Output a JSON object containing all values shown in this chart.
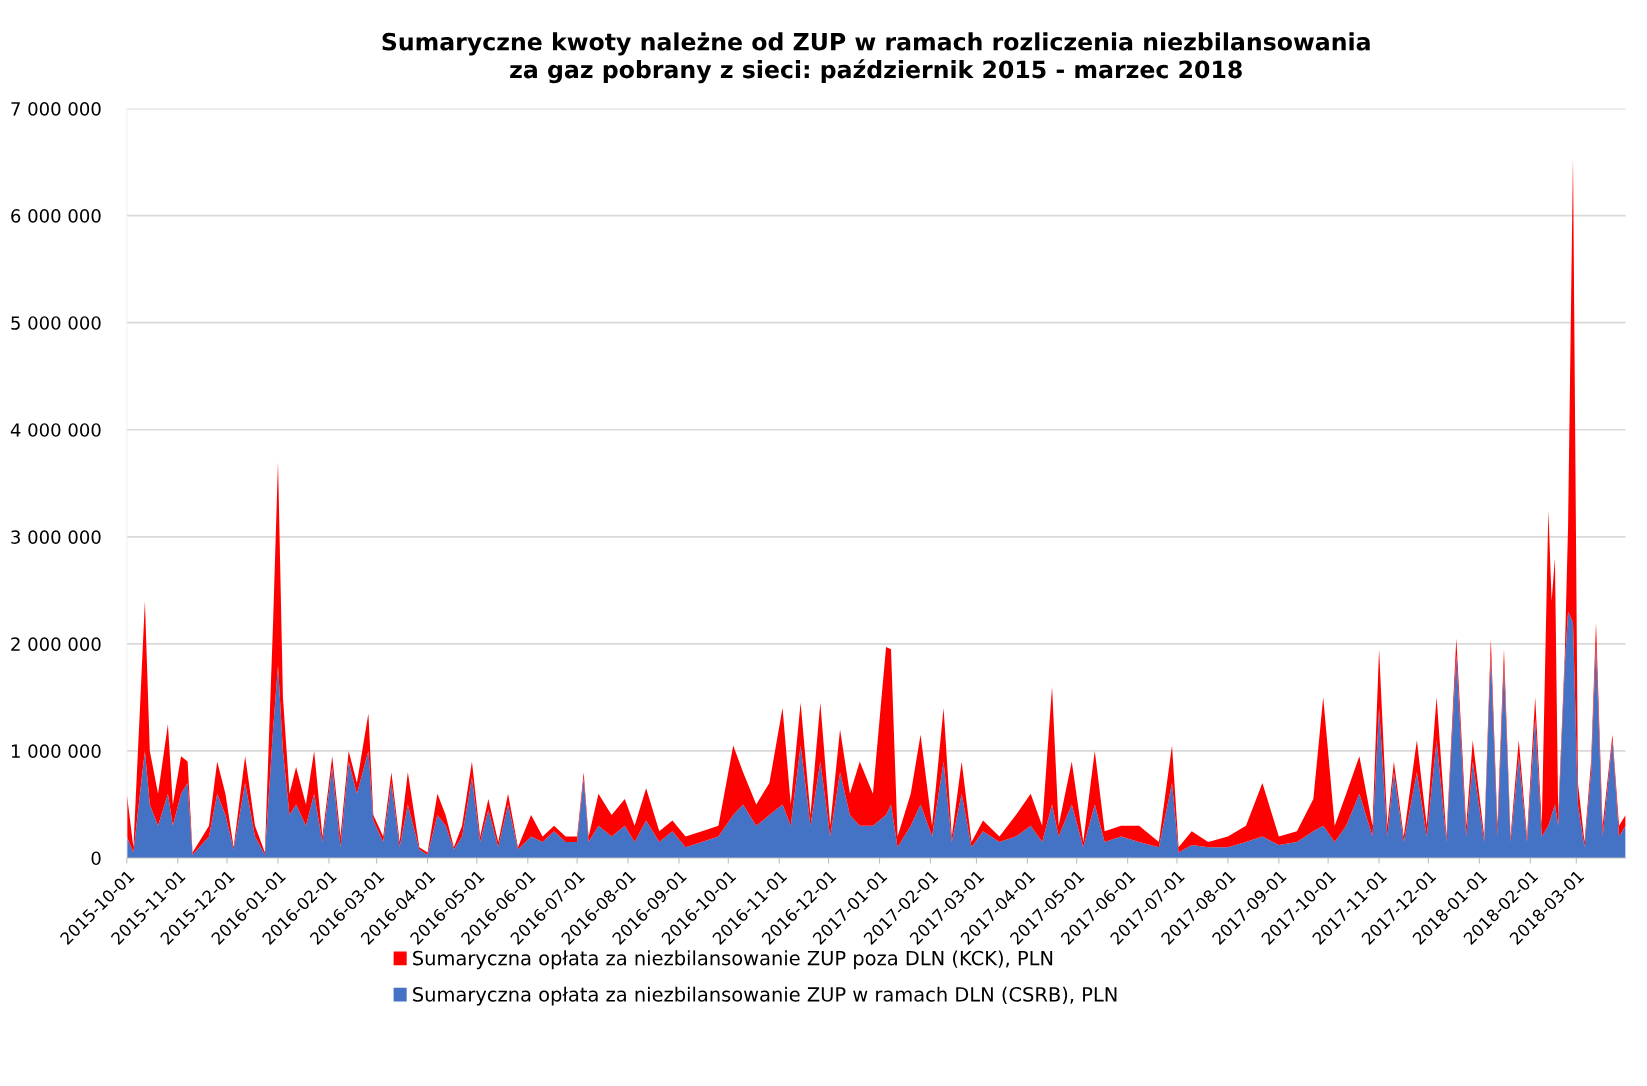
{
  "chart_data": {
    "type": "area",
    "stacked": true,
    "title": "Sumaryczne kwoty należne od ZUP w ramach rozliczenia niezbilansowania\nza gaz pobrany z sieci: październik 2015 - marzec 2018",
    "x": [
      "2015-10-01",
      "2015-10-05",
      "2015-10-09",
      "2015-10-12",
      "2015-10-15",
      "2015-10-20",
      "2015-10-26",
      "2015-10-29",
      "2015-11-03",
      "2015-11-07",
      "2015-11-10",
      "2015-11-20",
      "2015-11-25",
      "2015-11-30",
      "2015-12-05",
      "2015-12-12",
      "2015-12-18",
      "2015-12-24",
      "2015-12-29",
      "2016-01-01",
      "2016-01-04",
      "2016-01-08",
      "2016-01-12",
      "2016-01-18",
      "2016-01-23",
      "2016-01-28",
      "2016-02-03",
      "2016-02-08",
      "2016-02-13",
      "2016-02-18",
      "2016-02-25",
      "2016-02-28",
      "2016-03-05",
      "2016-03-10",
      "2016-03-15",
      "2016-03-20",
      "2016-03-27",
      "2016-04-01",
      "2016-04-07",
      "2016-04-12",
      "2016-04-17",
      "2016-04-22",
      "2016-04-28",
      "2016-05-03",
      "2016-05-08",
      "2016-05-14",
      "2016-05-20",
      "2016-05-26",
      "2016-06-03",
      "2016-06-10",
      "2016-06-17",
      "2016-06-24",
      "2016-07-01",
      "2016-07-05",
      "2016-07-08",
      "2016-07-14",
      "2016-07-22",
      "2016-07-30",
      "2016-08-05",
      "2016-08-12",
      "2016-08-20",
      "2016-08-28",
      "2016-09-05",
      "2016-09-15",
      "2016-09-25",
      "2016-10-04",
      "2016-10-10",
      "2016-10-18",
      "2016-10-26",
      "2016-11-03",
      "2016-11-08",
      "2016-11-14",
      "2016-11-20",
      "2016-11-26",
      "2016-12-02",
      "2016-12-08",
      "2016-12-14",
      "2016-12-20",
      "2016-12-28",
      "2017-01-05",
      "2017-01-08",
      "2017-01-12",
      "2017-01-20",
      "2017-01-26",
      "2017-02-02",
      "2017-02-09",
      "2017-02-14",
      "2017-02-20",
      "2017-02-26",
      "2017-03-05",
      "2017-03-15",
      "2017-03-25",
      "2017-04-03",
      "2017-04-10",
      "2017-04-16",
      "2017-04-20",
      "2017-04-28",
      "2017-05-05",
      "2017-05-12",
      "2017-05-18",
      "2017-05-28",
      "2017-06-08",
      "2017-06-20",
      "2017-06-28",
      "2017-07-02",
      "2017-07-10",
      "2017-07-20",
      "2017-08-01",
      "2017-08-12",
      "2017-08-22",
      "2017-09-01",
      "2017-09-12",
      "2017-09-22",
      "2017-09-28",
      "2017-10-05",
      "2017-10-12",
      "2017-10-20",
      "2017-10-28",
      "2017-11-01",
      "2017-11-06",
      "2017-11-10",
      "2017-11-16",
      "2017-11-24",
      "2017-11-30",
      "2017-12-06",
      "2017-12-12",
      "2017-12-18",
      "2017-12-24",
      "2017-12-28",
      "2018-01-04",
      "2018-01-08",
      "2018-01-12",
      "2018-01-16",
      "2018-01-20",
      "2018-01-25",
      "2018-01-30",
      "2018-02-04",
      "2018-02-08",
      "2018-02-12",
      "2018-02-14",
      "2018-02-16",
      "2018-02-18",
      "2018-02-22",
      "2018-02-24",
      "2018-02-27",
      "2018-03-02",
      "2018-03-06",
      "2018-03-10",
      "2018-03-13",
      "2018-03-17",
      "2018-03-23",
      "2018-03-27",
      "2018-03-31"
    ],
    "series": [
      {
        "name": "Sumaryczna opłata za niezbilansowanie ZUP w ramach DLN (CSRB), PLN",
        "color": "#4472c4",
        "values": [
          200000,
          50000,
          600000,
          1000000,
          500000,
          300000,
          600000,
          300000,
          600000,
          700000,
          30000,
          200000,
          600000,
          400000,
          80000,
          700000,
          200000,
          30000,
          1200000,
          1800000,
          1000000,
          400000,
          500000,
          300000,
          600000,
          150000,
          850000,
          100000,
          900000,
          600000,
          1000000,
          350000,
          150000,
          700000,
          100000,
          500000,
          80000,
          30000,
          400000,
          300000,
          80000,
          200000,
          750000,
          150000,
          450000,
          100000,
          500000,
          80000,
          200000,
          150000,
          250000,
          150000,
          150000,
          750000,
          150000,
          300000,
          200000,
          300000,
          150000,
          350000,
          150000,
          250000,
          100000,
          150000,
          200000,
          400000,
          500000,
          300000,
          400000,
          500000,
          300000,
          1050000,
          300000,
          900000,
          200000,
          800000,
          400000,
          300000,
          300000,
          400000,
          500000,
          100000,
          300000,
          500000,
          200000,
          900000,
          150000,
          600000,
          100000,
          250000,
          150000,
          200000,
          300000,
          150000,
          500000,
          200000,
          500000,
          100000,
          500000,
          150000,
          200000,
          150000,
          100000,
          700000,
          50000,
          120000,
          100000,
          100000,
          150000,
          200000,
          120000,
          150000,
          250000,
          300000,
          150000,
          300000,
          600000,
          200000,
          1400000,
          200000,
          800000,
          150000,
          800000,
          200000,
          1100000,
          150000,
          1900000,
          200000,
          900000,
          150000,
          1900000,
          200000,
          1800000,
          150000,
          950000,
          150000,
          1300000,
          200000,
          300000,
          400000,
          500000,
          300000,
          1800000,
          2300000,
          2200000,
          500000,
          100000,
          800000,
          2000000,
          200000,
          1100000,
          200000,
          300000
        ]
      },
      {
        "name": "Sumaryczna opłata za niezbilansowanie ZUP poza DLN (KCK), PLN",
        "color": "#ff0000",
        "values": [
          400000,
          50000,
          800000,
          1400000,
          500000,
          300000,
          650000,
          200000,
          350000,
          200000,
          20000,
          100000,
          300000,
          200000,
          20000,
          250000,
          100000,
          20000,
          1000000,
          1900000,
          500000,
          200000,
          350000,
          200000,
          400000,
          50000,
          100000,
          100000,
          100000,
          100000,
          350000,
          50000,
          50000,
          100000,
          50000,
          300000,
          20000,
          20000,
          200000,
          100000,
          20000,
          100000,
          150000,
          50000,
          100000,
          50000,
          100000,
          20000,
          200000,
          50000,
          50000,
          50000,
          50000,
          50000,
          50000,
          300000,
          200000,
          250000,
          150000,
          300000,
          100000,
          100000,
          100000,
          100000,
          100000,
          650000,
          300000,
          200000,
          300000,
          900000,
          200000,
          400000,
          100000,
          550000,
          100000,
          400000,
          200000,
          600000,
          300000,
          1570000,
          1450000,
          100000,
          300000,
          650000,
          100000,
          500000,
          50000,
          300000,
          50000,
          100000,
          50000,
          200000,
          300000,
          150000,
          1100000,
          100000,
          400000,
          50000,
          500000,
          100000,
          100000,
          150000,
          50000,
          350000,
          50000,
          130000,
          50000,
          100000,
          150000,
          500000,
          80000,
          100000,
          300000,
          1200000,
          150000,
          300000,
          350000,
          100000,
          550000,
          100000,
          100000,
          50000,
          300000,
          100000,
          400000,
          50000,
          150000,
          100000,
          200000,
          50000,
          150000,
          100000,
          150000,
          50000,
          150000,
          50000,
          200000,
          100000,
          2950000,
          2000000,
          2300000,
          100000,
          100000,
          800000,
          4350000,
          200000,
          50000,
          100000,
          200000,
          100000,
          50000,
          100000,
          100000
        ]
      }
    ],
    "xlim": [
      "2015-10-01",
      "2018-03-31"
    ],
    "xticks": [
      "2015-10-01",
      "2015-11-01",
      "2015-12-01",
      "2016-01-01",
      "2016-02-01",
      "2016-03-01",
      "2016-04-01",
      "2016-05-01",
      "2016-06-01",
      "2016-07-01",
      "2016-08-01",
      "2016-09-01",
      "2016-10-01",
      "2016-11-01",
      "2016-12-01",
      "2017-01-01",
      "2017-02-01",
      "2017-03-01",
      "2017-04-01",
      "2017-05-01",
      "2017-06-01",
      "2017-07-01",
      "2017-08-01",
      "2017-09-01",
      "2017-10-01",
      "2017-11-01",
      "2017-12-01",
      "2018-01-01",
      "2018-02-01",
      "2018-03-01"
    ],
    "ylim": [
      0,
      7000000
    ],
    "yticks": [
      {
        "value": 0,
        "label": "0"
      },
      {
        "value": 1000000,
        "label": "1 000 000"
      },
      {
        "value": 2000000,
        "label": "2 000 000"
      },
      {
        "value": 3000000,
        "label": "3 000 000"
      },
      {
        "value": 4000000,
        "label": "4 000 000"
      },
      {
        "value": 5000000,
        "label": "5 000 000"
      },
      {
        "value": 6000000,
        "label": "6 000 000"
      },
      {
        "value": 7000000,
        "label": "7 000 000"
      }
    ],
    "grid": "y",
    "legend": "bottom"
  }
}
